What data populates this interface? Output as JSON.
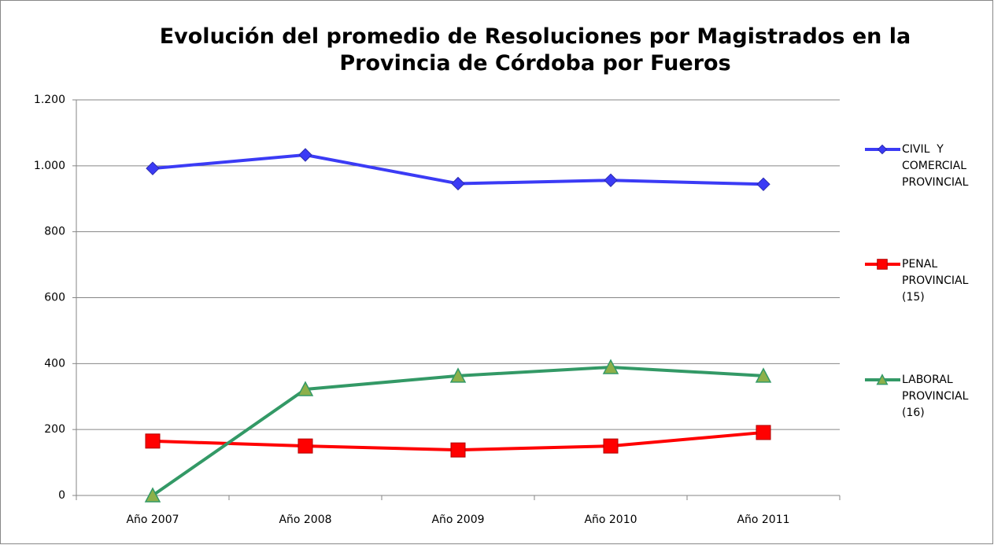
{
  "chart_data": {
    "type": "line",
    "title": "Evolución del promedio de Resoluciones por Magistrados en la Provincia de Córdoba por Fueros",
    "categories": [
      "Año 2007",
      "Año 2008",
      "Año 2009",
      "Año 2010",
      "Año 2011"
    ],
    "series": [
      {
        "name": "CIVIL  Y COMERCIAL PROVINCIAL",
        "color": "#3b3bf5",
        "marker": "diamond",
        "values": [
          992,
          1033,
          946,
          956,
          944
        ]
      },
      {
        "name": "PENAL PROVINCIAL (15)",
        "color": "#ff0000",
        "marker": "square",
        "values": [
          165,
          150,
          138,
          150,
          191
        ]
      },
      {
        "name": "LABORAL PROVINCIAL (16)",
        "color": "#339966",
        "marker": "triangle",
        "values": [
          0,
          322,
          363,
          389,
          363
        ]
      }
    ],
    "ylim": [
      0,
      1200
    ],
    "yticks": [
      0,
      200,
      400,
      600,
      800,
      {
        "value": 1000,
        "label": "1.000"
      },
      {
        "value": 1200,
        "label": "1.200"
      }
    ],
    "grid": true,
    "legend": "right"
  }
}
